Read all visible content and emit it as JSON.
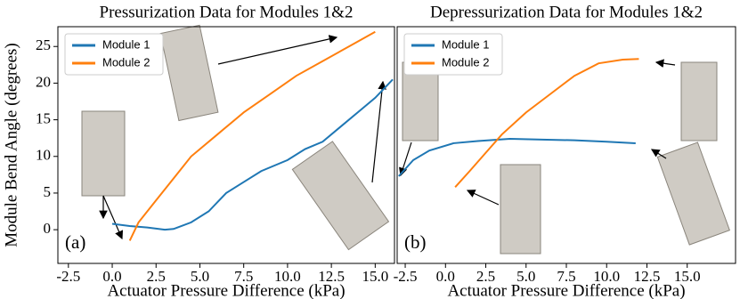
{
  "chart_data": [
    {
      "type": "line",
      "title": "Pressurization Data for Modules 1&2",
      "panel_label": "(a)",
      "x_label": "Actuator Pressure Difference (kPa)",
      "y_label": "Module Bend Angle (degrees)",
      "xlim": [
        -3.1,
        16.1
      ],
      "ylim": [
        -4.6,
        27.7
      ],
      "xticks": [
        -2.5,
        {
          "value": 0,
          "label": "0.0"
        },
        2.5,
        {
          "value": 5,
          "label": "5.0"
        },
        7.5,
        {
          "value": 10,
          "label": "10.0"
        },
        12.5,
        {
          "value": 15,
          "label": "15.0"
        }
      ],
      "yticks": [
        0,
        5,
        10,
        15,
        20,
        25
      ],
      "legend": "upper left",
      "series": [
        {
          "name": "Module 1",
          "color": "#1f77b4",
          "x": [
            0,
            1,
            2,
            3,
            3.5,
            4.5,
            5.5,
            6.5,
            7.5,
            8.5,
            10,
            11,
            12,
            13,
            14,
            15,
            16
          ],
          "values": [
            0.8,
            0.5,
            0.3,
            0,
            0.1,
            1,
            2.5,
            5,
            6.5,
            8,
            9.5,
            11,
            12,
            14,
            16,
            18,
            20.5
          ]
        },
        {
          "name": "Module 2",
          "color": "#ff7f0e",
          "x": [
            1,
            1.5,
            2.5,
            3.5,
            4.5,
            6,
            7.5,
            9,
            10.5,
            12,
            13.5,
            15
          ],
          "values": [
            -1.5,
            1,
            4,
            7,
            10,
            13,
            16,
            18.5,
            21,
            23,
            25,
            27
          ]
        }
      ]
    },
    {
      "type": "line",
      "title": "Depressurization Data for Modules 1&2",
      "panel_label": "(b)",
      "x_label": "Actuator Pressure Difference (kPa)",
      "xlim": [
        -3.0,
        18.0
      ],
      "ylim": [
        -4.6,
        27.7
      ],
      "xticks": [
        -2.5,
        {
          "value": 0,
          "label": "0.0"
        },
        2.5,
        {
          "value": 5,
          "label": "5.0"
        },
        7.5,
        {
          "value": 10,
          "label": "10.0"
        },
        12.5,
        {
          "value": 15,
          "label": "15.0"
        }
      ],
      "legend": "upper left",
      "series": [
        {
          "name": "Module 1",
          "color": "#1f77b4",
          "x": [
            -2.9,
            -2,
            -1,
            0.5,
            2,
            4,
            6,
            8,
            10,
            11.8
          ],
          "values": [
            7.3,
            9.5,
            10.8,
            11.8,
            12.1,
            12.4,
            12.3,
            12.2,
            12,
            11.8
          ]
        },
        {
          "name": "Module 2",
          "color": "#ff7f0e",
          "x": [
            0.6,
            1.5,
            2.5,
            3.5,
            5,
            6.5,
            8,
            9.5,
            11,
            12
          ],
          "values": [
            5.8,
            8,
            10.5,
            13,
            16,
            18.5,
            21,
            22.7,
            23.2,
            23.3
          ]
        }
      ]
    }
  ]
}
